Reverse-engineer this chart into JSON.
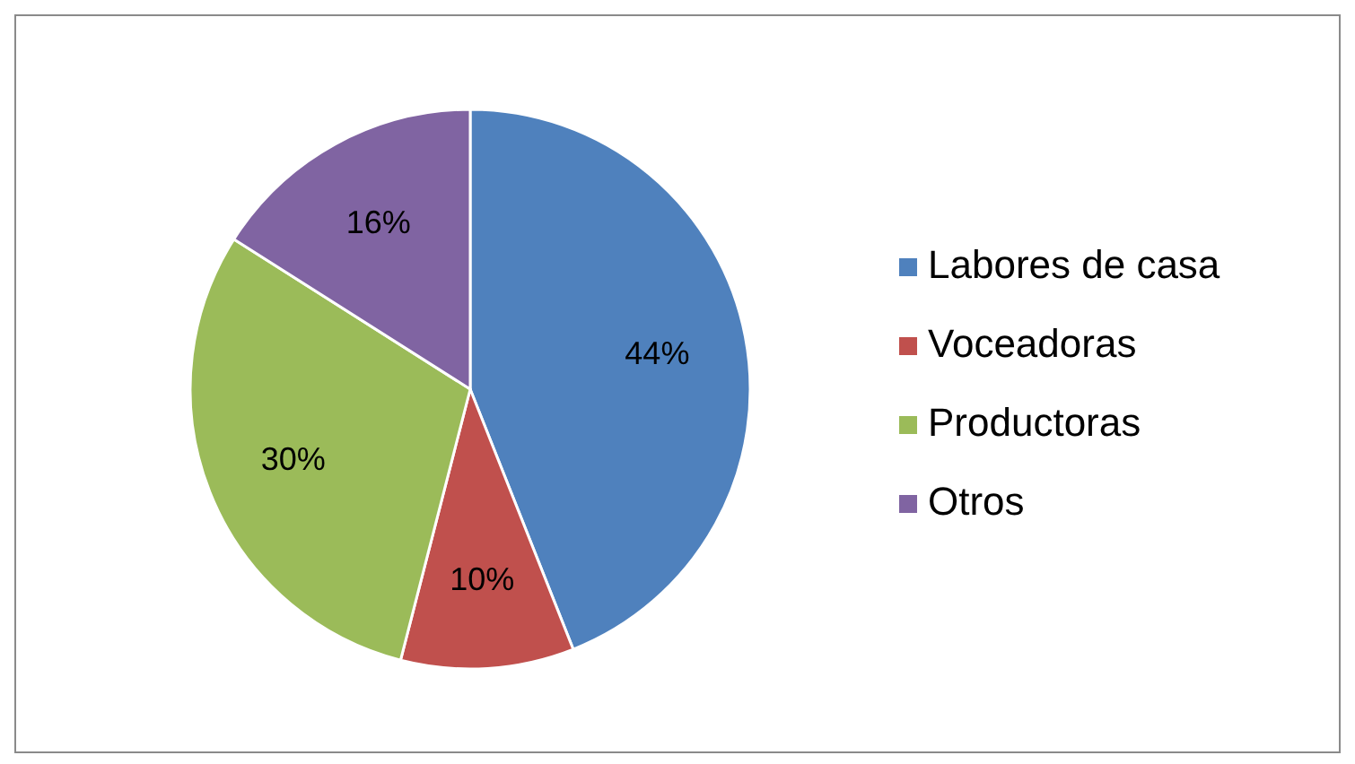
{
  "chart_data": {
    "type": "pie",
    "categories": [
      "Labores de casa",
      "Voceadoras",
      "Productoras",
      "Otros"
    ],
    "values": [
      44,
      10,
      30,
      16
    ],
    "colors": [
      "#4f81bd",
      "#c0504d",
      "#9bbb59",
      "#8064a2"
    ],
    "value_labels": [
      "44%",
      "10%",
      "30%",
      "16%"
    ],
    "legend": "right"
  }
}
